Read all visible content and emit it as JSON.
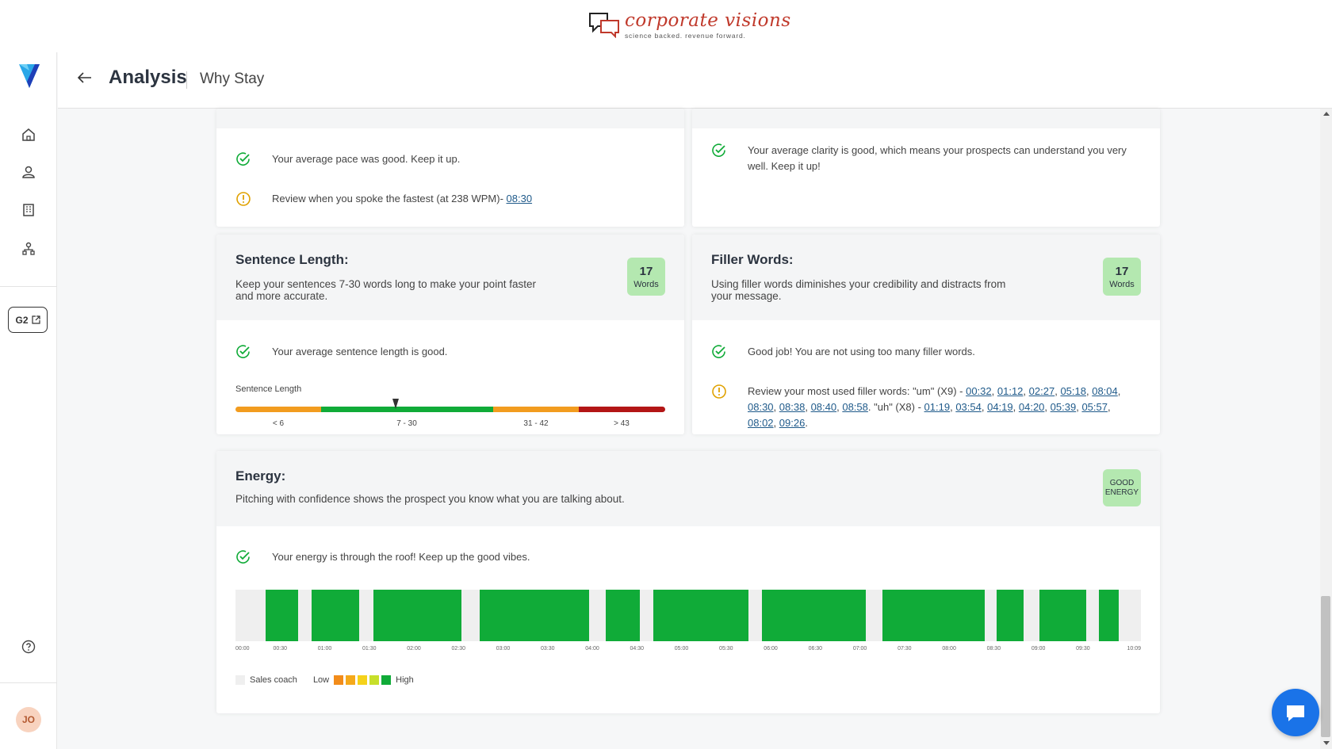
{
  "brand": {
    "name": "corporate visions",
    "tagline": "science backed. revenue forward."
  },
  "header": {
    "title": "Analysis",
    "subtitle": "Why Stay"
  },
  "sidebar": {
    "nav": [
      "home-icon",
      "user-icon",
      "building-icon",
      "org-chart-icon"
    ],
    "g2_label": "G2",
    "avatar_initials": "JO"
  },
  "pace": {
    "good_msg": "Your average pace was good. Keep it up.",
    "review_prefix": "Review when you spoke the fastest (at 238 WPM)- ",
    "review_link": "08:30"
  },
  "clarity": {
    "good_msg": "Your average clarity is good, which means your prospects can understand you very well. Keep it up!"
  },
  "sentence": {
    "title": "Sentence Length:",
    "desc": "Keep your sentences 7-30 words long to make your point faster and more accurate.",
    "badge_value": "17",
    "badge_unit": "Words",
    "good_msg": "Your average sentence length is good.",
    "meter_label": "Sentence Length",
    "ranges": [
      "< 6",
      "7 - 30",
      "31 - 42",
      "> 43"
    ],
    "value": 17
  },
  "filler": {
    "title": "Filler Words:",
    "desc": "Using filler words diminishes your credibility and distracts from your message.",
    "badge_value": "17",
    "badge_unit": "Words",
    "good_msg": "Good job! You are not using too many filler words.",
    "review_um_prefix": "Review your most used filler words: \"um\" (X9) - ",
    "um_links": [
      "00:32",
      "01:12",
      "02:27",
      "05:18",
      "08:04",
      "08:30",
      "08:38",
      "08:40",
      "08:58"
    ],
    "review_uh_prefix": ". \"uh\" (X8) - ",
    "uh_links": [
      "01:19",
      "03:54",
      "04:19",
      "04:20",
      "05:39",
      "05:57",
      "08:02",
      "09:26"
    ]
  },
  "energy": {
    "title": "Energy:",
    "desc": "Pitching with confidence shows the prospect you know what you are talking about.",
    "badge": "GOOD ENERGY",
    "good_msg": "Your energy is through the roof! Keep up the good vibes.",
    "time_labels": [
      "00:00",
      "00:30",
      "01:00",
      "01:30",
      "02:00",
      "02:30",
      "03:00",
      "03:30",
      "04:00",
      "04:30",
      "05:00",
      "05:30",
      "06:00",
      "06:30",
      "07:00",
      "07:30",
      "08:00",
      "08:30",
      "09:00",
      "09:30",
      "10:09"
    ],
    "segments_seconds": [
      [
        20,
        42
      ],
      [
        51,
        83
      ],
      [
        93,
        152
      ],
      [
        164,
        238
      ],
      [
        249,
        272
      ],
      [
        281,
        345
      ],
      [
        354,
        424
      ],
      [
        435,
        504
      ],
      [
        512,
        530
      ],
      [
        541,
        572
      ],
      [
        581,
        594
      ]
    ],
    "total_seconds": 609,
    "legend": {
      "coach": "Sales coach",
      "low": "Low",
      "high": "High",
      "colors": [
        "#f28c1a",
        "#f5a91a",
        "#f5d21a",
        "#c7df2a",
        "#10ab38"
      ]
    }
  },
  "colors": {
    "good": "#10ab38",
    "warn": "#e0a100",
    "bad": "#b31616",
    "orange": "#f29c1f",
    "badge_bg": "#b4e8b0"
  }
}
